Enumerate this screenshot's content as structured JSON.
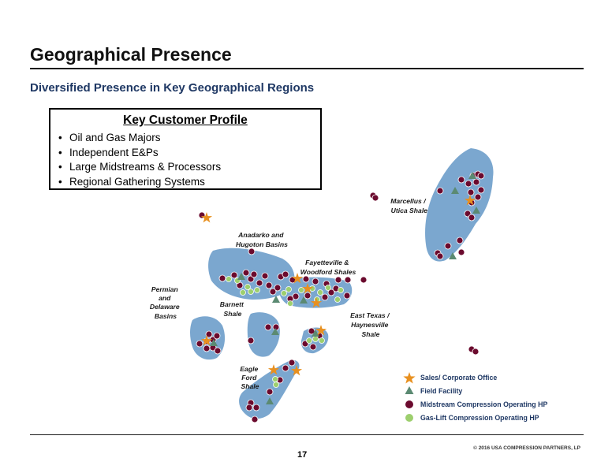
{
  "slide": {
    "title": "Geographical Presence",
    "subtitle": "Diversified Presence in Key Geographical Regions",
    "page_number": "17",
    "copyright": "© 2016 USA COMPRESSION PARTNERS, LP"
  },
  "profile": {
    "heading": "Key Customer Profile",
    "items": [
      "Oil and Gas Majors",
      "Independent E&Ps",
      "Large Midstreams & Processors",
      "Regional Gathering Systems"
    ]
  },
  "regions": {
    "marcellus": [
      "Marcellus /",
      "Utica Shale"
    ],
    "anadarko": [
      "Anadarko and",
      "Hugoton Basins"
    ],
    "fayetteville": [
      "Fayetteville &",
      "Woodford Shales"
    ],
    "permian": [
      "Permian",
      "and",
      "Delaware",
      "Basins"
    ],
    "barnett": [
      "Barnett",
      "Shale"
    ],
    "east_texas": [
      "East Texas /",
      "Haynesville",
      "Shale"
    ],
    "eagle_ford": [
      "Eagle",
      "Ford",
      "Shale"
    ]
  },
  "legend": {
    "sales_office": "Sales/ Corporate Office",
    "field_facility": "Field Facility",
    "midstream": "Midstream Compression Operating HP",
    "gas_lift": "Gas-Lift Compression Operating HP"
  },
  "colors": {
    "region_fill": "#7ba7cf",
    "star": "#e8901f",
    "triangle": "#5b8a72",
    "midstream": "#6b0a2e",
    "gas_lift": "#9dcf6e",
    "title": "#111111",
    "subtitle": "#1f3864"
  },
  "icons": {
    "sales_office": "star-icon",
    "field_facility": "triangle-icon",
    "midstream": "maroon-dot-icon",
    "gas_lift": "green-dot-icon"
  }
}
